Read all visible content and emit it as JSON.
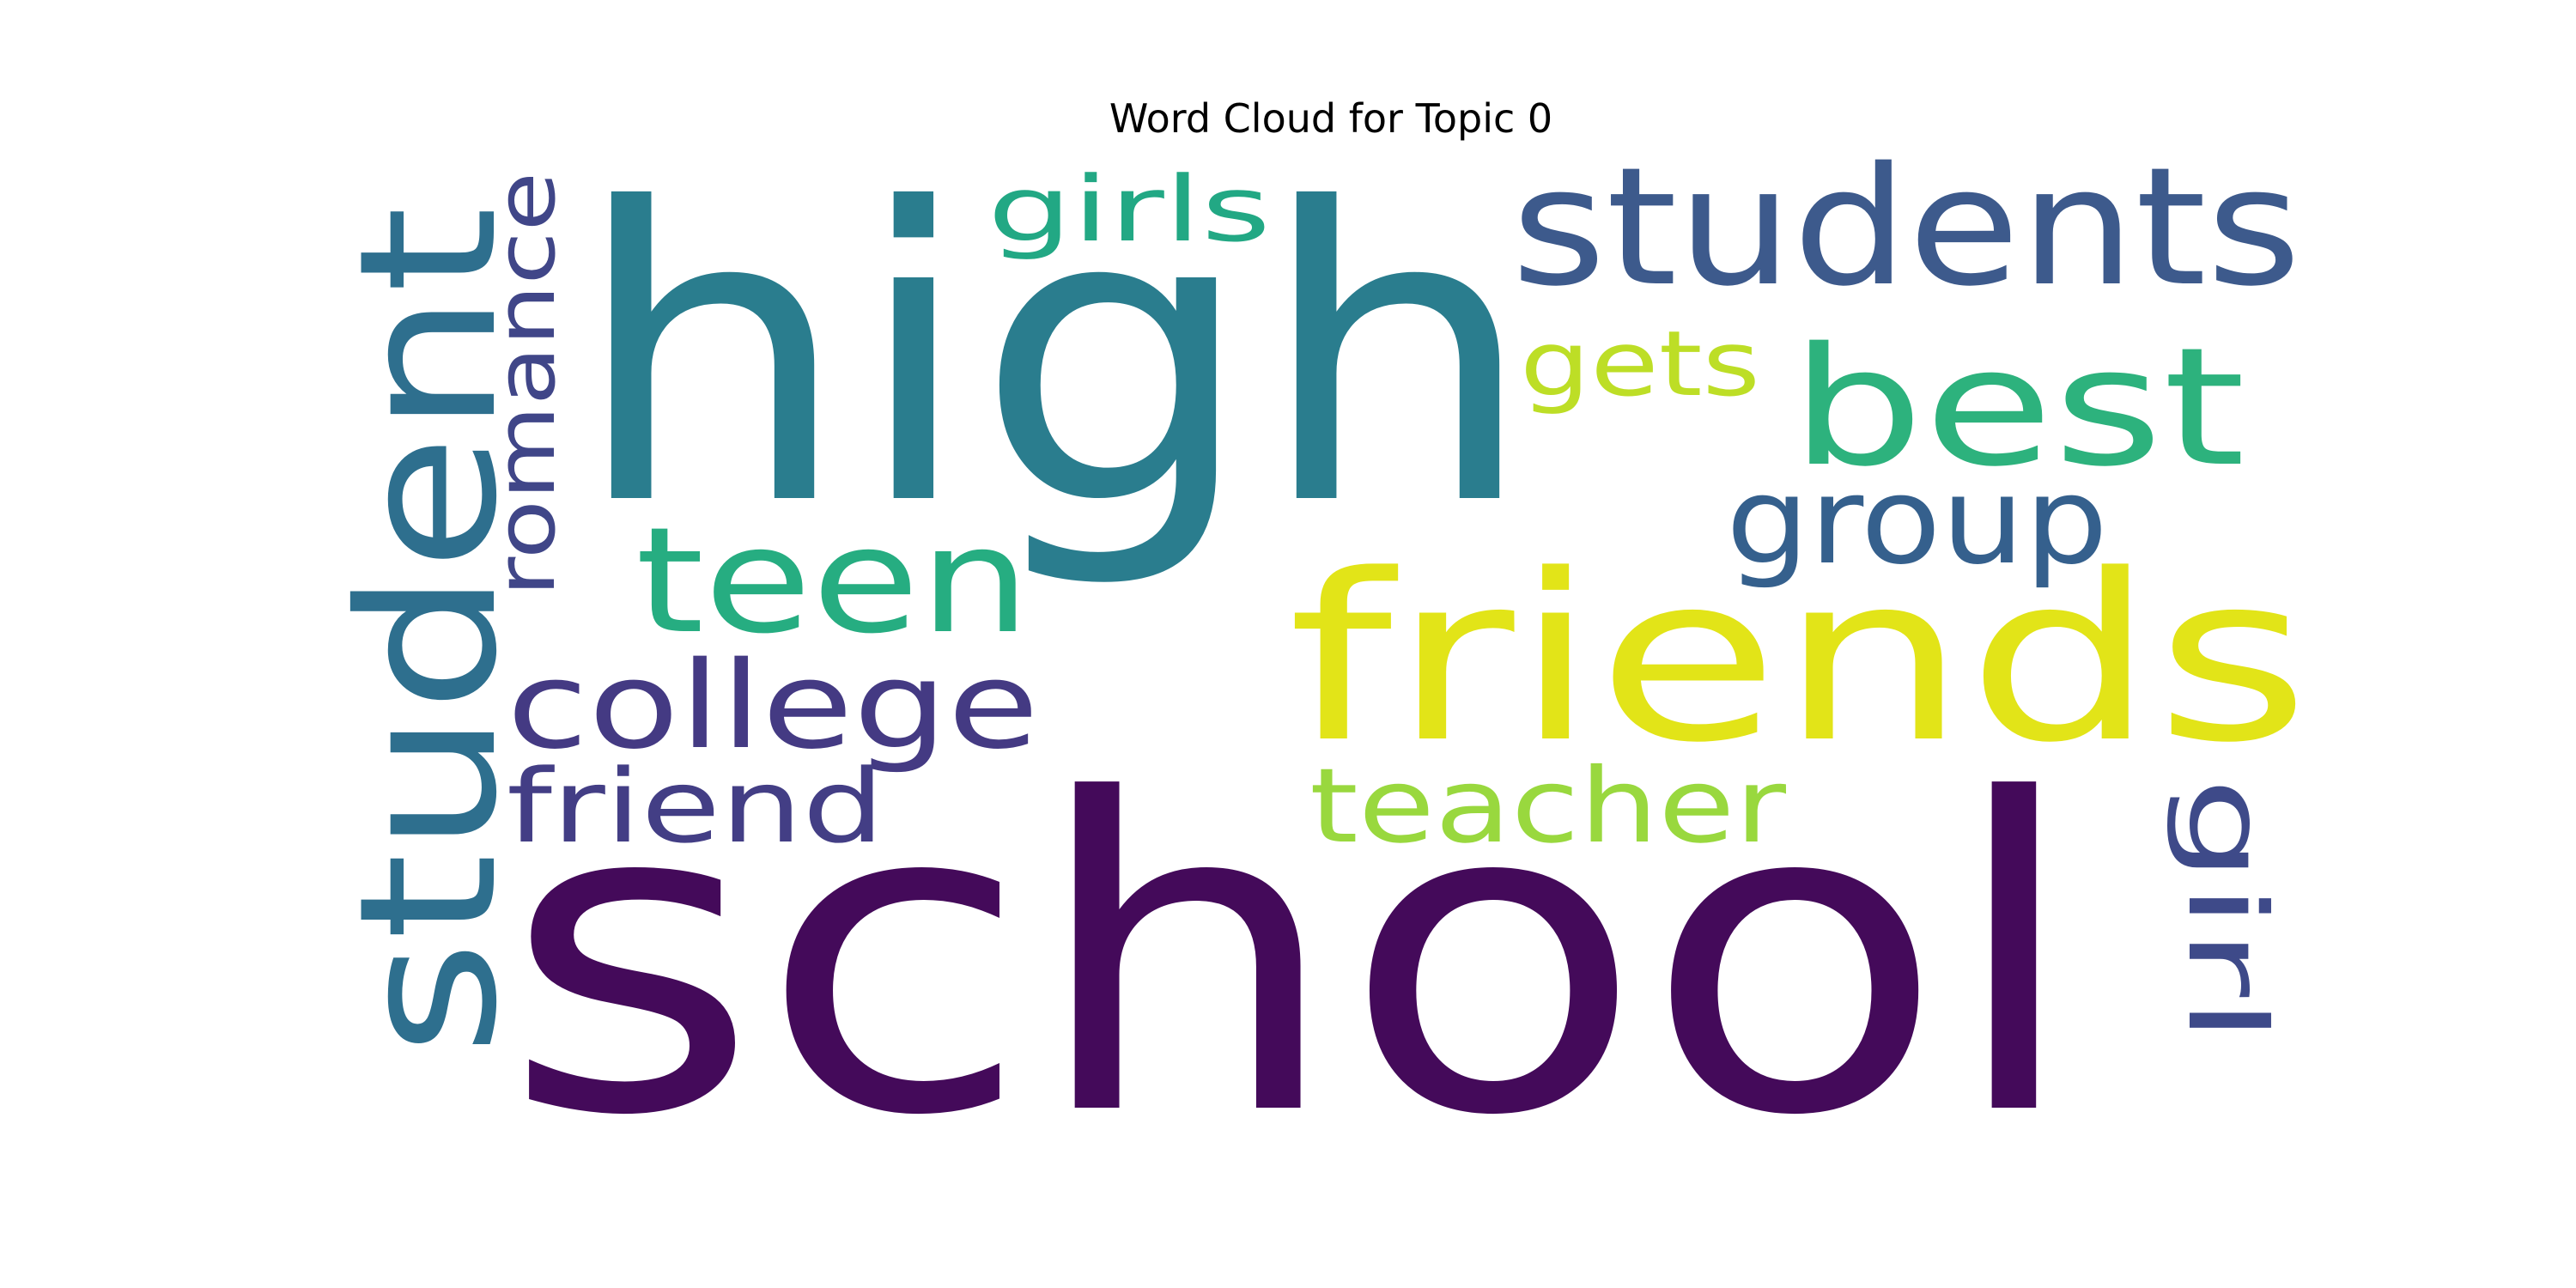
{
  "chart_data": {
    "type": "wordcloud",
    "title": "Word Cloud for Topic 0",
    "colormap": "viridis",
    "words": [
      {
        "text": "school",
        "color": "#440a5a"
      },
      {
        "text": "high",
        "color": "#2a7d8e"
      },
      {
        "text": "friends",
        "color": "#e2e418"
      },
      {
        "text": "students",
        "color": "#3d5a8c"
      },
      {
        "text": "student",
        "color": "#2e6f8e"
      },
      {
        "text": "best",
        "color": "#2db27d"
      },
      {
        "text": "teen",
        "color": "#26ad81"
      },
      {
        "text": "college",
        "color": "#443a83"
      },
      {
        "text": "teacher",
        "color": "#99d83e"
      },
      {
        "text": "friend",
        "color": "#433e85"
      },
      {
        "text": "group",
        "color": "#35608d"
      },
      {
        "text": "romance",
        "color": "#404688"
      },
      {
        "text": "girls",
        "color": "#22a884"
      },
      {
        "text": "gets",
        "color": "#bdde26"
      },
      {
        "text": "girl",
        "color": "#3e4a89"
      }
    ]
  }
}
